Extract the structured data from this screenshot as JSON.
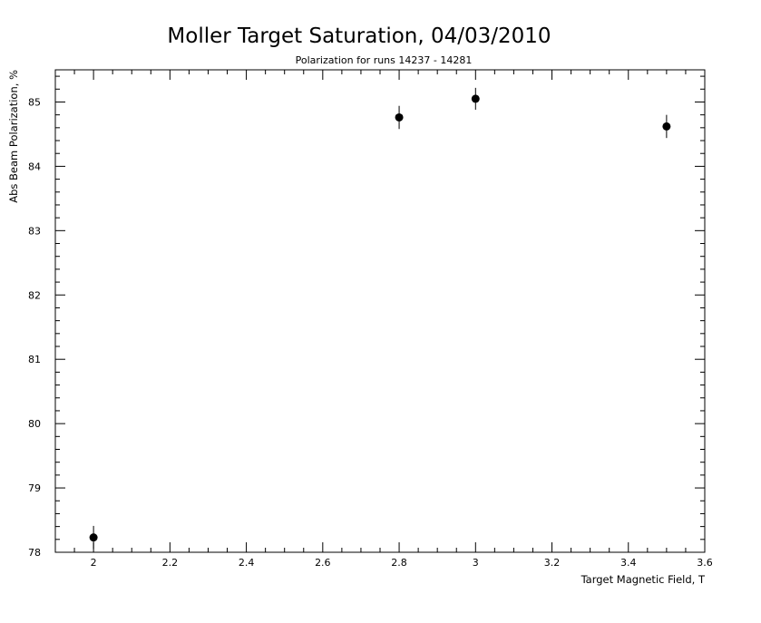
{
  "chart_data": {
    "type": "scatter",
    "title": "Moller Target Saturation, 04/03/2010",
    "subtitle": "Polarization for runs 14237 - 14281",
    "xlabel": "Target Magnetic Field, T",
    "ylabel": "Abs Beam Polarization, %",
    "xlim": [
      1.9,
      3.6
    ],
    "ylim": [
      78,
      85.5
    ],
    "x_ticks": [
      2,
      2.2,
      2.4,
      2.6,
      2.8,
      3,
      3.2,
      3.4,
      3.6
    ],
    "x_tick_labels": [
      "2",
      "2.2",
      "2.4",
      "2.6",
      "2.8",
      "3",
      "3.2",
      "3.4",
      "3.6"
    ],
    "y_ticks": [
      78,
      79,
      80,
      81,
      82,
      83,
      84,
      85
    ],
    "y_tick_labels": [
      "78",
      "79",
      "80",
      "81",
      "82",
      "83",
      "84",
      "85"
    ],
    "grid": false,
    "points": [
      {
        "x": 2.0,
        "y": 78.23,
        "err": 0.18
      },
      {
        "x": 2.8,
        "y": 84.76,
        "err": 0.18
      },
      {
        "x": 3.0,
        "y": 85.05,
        "err": 0.17
      },
      {
        "x": 3.5,
        "y": 84.62,
        "err": 0.18
      }
    ]
  }
}
